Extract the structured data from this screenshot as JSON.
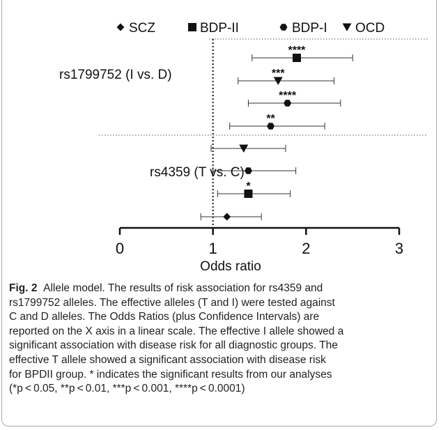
{
  "chart_data": {
    "type": "forest",
    "xlabel": "Odds ratio",
    "xlim": [
      0,
      3
    ],
    "xticks": [
      "0",
      "1",
      "2",
      "3"
    ],
    "reference_line": 1,
    "legend": [
      {
        "name": "SCZ",
        "symbol": "◆",
        "marker": "diamond"
      },
      {
        "name": "BDP-II",
        "symbol": "■",
        "marker": "square"
      },
      {
        "name": "BDP-I",
        "symbol": "⬢",
        "marker": "hexagon"
      },
      {
        "name": "OCD",
        "symbol": "▼",
        "marker": "triangle"
      }
    ],
    "groups": [
      {
        "label": "rs1799752 (I vs. D)",
        "rows": [
          {
            "series": "BDP-II",
            "or": 1.9,
            "lo": 1.42,
            "hi": 2.5,
            "sig": "****"
          },
          {
            "series": "OCD",
            "or": 1.7,
            "lo": 1.27,
            "hi": 2.3,
            "sig": "***"
          },
          {
            "series": "BDP-I",
            "or": 1.8,
            "lo": 1.38,
            "hi": 2.37,
            "sig": "****"
          },
          {
            "series": "BDP-I",
            "or": 1.62,
            "lo": 1.18,
            "hi": 2.2,
            "sig": "**"
          }
        ]
      },
      {
        "label": "rs4359 (T vs. C)",
        "rows": [
          {
            "series": "OCD",
            "or": 1.33,
            "lo": 0.98,
            "hi": 1.78,
            "sig": ""
          },
          {
            "series": "BDP-I",
            "or": 1.38,
            "lo": 1.0,
            "hi": 1.89,
            "sig": ""
          },
          {
            "series": "BDP-II",
            "or": 1.38,
            "lo": 1.05,
            "hi": 1.83,
            "sig": "*"
          },
          {
            "series": "SCZ",
            "or": 1.15,
            "lo": 0.87,
            "hi": 1.52,
            "sig": ""
          }
        ]
      }
    ]
  },
  "caption": {
    "fig_label": "Fig. 2",
    "text_lines": [
      "Allele model. The results of risk association for rs4359 and",
      "rs1799752 alleles. The effective alleles (T and I) were tested against",
      "C and D alleles. The Odds Ratios (plus Confidence Intervals) are",
      "reported on the X axis in a linear scale. The effective I allele showed a",
      "significant association with disease risk for all diagnostic groups. The",
      "effective T allele showed a significant association with disease risk",
      "for BPDII group. * indicates the significant results from our analyses",
      "(*p < 0.05, **p < 0.01, ***p < 0.001, ****p < 0.0001)"
    ]
  }
}
